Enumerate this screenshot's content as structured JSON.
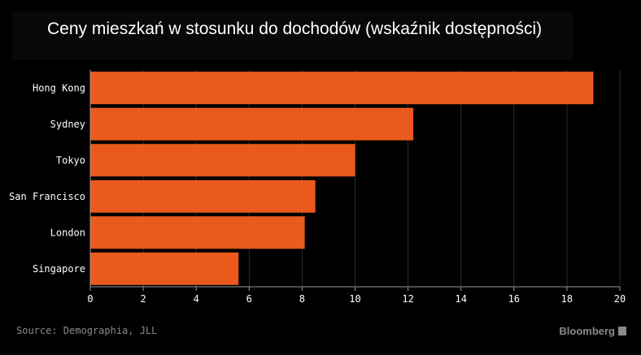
{
  "title": "Ceny mieszkań w stosunku do dochodów (wskaźnik dostępności)",
  "source": "Source: Demographia, JLL",
  "brand": "Bloomberg",
  "colors": {
    "bar": "#ea5a1c",
    "background": "#000000",
    "grid": "#2a2a2a",
    "axis": "#9a9a9a",
    "text": "#ffffff",
    "muted": "#8a8a8a"
  },
  "chart_data": {
    "type": "bar",
    "orientation": "horizontal",
    "categories": [
      "Hong Kong",
      "Sydney",
      "Tokyo",
      "San Francisco",
      "London",
      "Singapore"
    ],
    "values": [
      19.0,
      12.2,
      10.0,
      8.5,
      8.1,
      5.6
    ],
    "title": "Ceny mieszkań w stosunku do dochodów (wskaźnik dostępności)",
    "xlabel": "",
    "ylabel": "",
    "xlim": [
      0,
      20
    ],
    "xticks": [
      0,
      2,
      4,
      6,
      8,
      10,
      12,
      14,
      16,
      18,
      20
    ],
    "grid": true
  }
}
